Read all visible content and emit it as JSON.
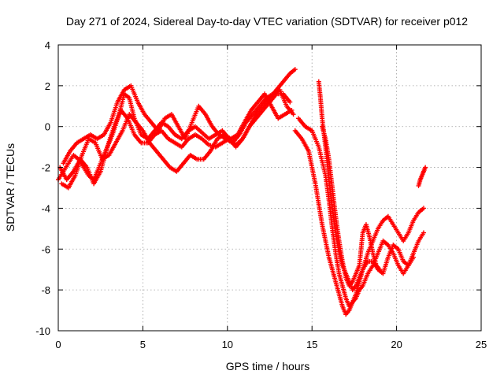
{
  "chart_data": {
    "type": "scatter",
    "title": "Day 271 of 2024, Sidereal Day-to-day VTEC variation (SDTVAR) for receiver p012",
    "xlabel": "GPS time / hours",
    "ylabel": "SDTVAR / TECUs",
    "xlim": [
      0,
      25
    ],
    "ylim": [
      -10,
      4
    ],
    "xticks": [
      "0",
      "5",
      "10",
      "15",
      "20",
      "25"
    ],
    "yticks": [
      "-10",
      "-8",
      "-6",
      "-4",
      "-2",
      "0",
      "2",
      "4"
    ],
    "grid": true,
    "marker": "plus",
    "colors": {
      "series": "#ff0000",
      "grid": "#a0a0a0",
      "axis": "#000000"
    },
    "series": [
      {
        "x": [
          0,
          0.3,
          0.6,
          0.9,
          1.2,
          1.5,
          1.8,
          2.1,
          2.4,
          2.8,
          3.2,
          3.6,
          3.9,
          4.2,
          4.5,
          4.9,
          5.3,
          5.7,
          6.1,
          6.5,
          6.9,
          7.3,
          7.7,
          8.1,
          8.5,
          8.9,
          9.3,
          9.7,
          10.1,
          10.5,
          10.9,
          11.3,
          11.7,
          12.1,
          12.5,
          12.9,
          13.3,
          13.7,
          14.0
        ],
        "y": [
          -2.6,
          -2.2,
          -1.8,
          -1.4,
          -1.6,
          -2.0,
          -2.4,
          -2.6,
          -2.0,
          -1.2,
          -0.4,
          0.6,
          1.6,
          1.4,
          0.4,
          -0.4,
          -0.6,
          -0.2,
          0.2,
          0.0,
          -0.4,
          -0.6,
          -0.2,
          0.0,
          -0.3,
          -0.6,
          -0.4,
          -0.2,
          -0.6,
          -0.9,
          -0.6,
          0.0,
          0.6,
          1.0,
          1.4,
          1.8,
          2.2,
          2.6,
          2.8
        ]
      },
      {
        "x": [
          0.1,
          0.5,
          0.9,
          1.3,
          1.7,
          2.1,
          2.5,
          2.9,
          3.3,
          3.7,
          4.1,
          4.5,
          4.9,
          5.3,
          5.7,
          6.1,
          6.5,
          6.9,
          7.3,
          7.7,
          8.1,
          8.5,
          8.9,
          9.3,
          9.7,
          10.1,
          10.5,
          10.9,
          11.3,
          11.7,
          12.1,
          12.5,
          12.9,
          13.3,
          13.7
        ],
        "y": [
          -2.0,
          -2.6,
          -2.2,
          -1.6,
          -2.0,
          -2.8,
          -2.2,
          -1.0,
          0.0,
          0.8,
          0.4,
          -0.4,
          -0.8,
          -0.8,
          -0.4,
          -0.2,
          -0.6,
          -0.8,
          -1.0,
          -0.6,
          -0.4,
          -0.6,
          -0.9,
          -1.0,
          -0.8,
          -0.6,
          -1.0,
          -0.6,
          0.0,
          0.4,
          0.8,
          1.2,
          1.6,
          1.6,
          1.2
        ]
      },
      {
        "x": [
          0.2,
          0.6,
          1.0,
          1.4,
          1.8,
          2.2,
          2.6,
          3.0,
          3.4,
          3.8,
          4.2,
          4.6,
          5.0,
          5.4,
          5.8,
          6.2,
          6.6,
          7.0,
          7.4,
          7.8,
          8.2,
          8.6,
          9.0,
          9.4,
          9.8,
          10.2,
          10.6,
          11.0,
          11.4,
          11.8,
          12.2,
          12.6,
          13.0,
          13.4,
          13.8
        ],
        "y": [
          -2.8,
          -3.0,
          -2.4,
          -1.4,
          -0.6,
          -0.8,
          -1.6,
          -1.4,
          -0.8,
          -0.2,
          0.6,
          0.2,
          -0.2,
          -0.8,
          -1.2,
          -1.6,
          -2.0,
          -2.2,
          -1.8,
          -1.4,
          -1.6,
          -1.6,
          -1.2,
          -0.6,
          -0.4,
          -0.6,
          -0.4,
          0.2,
          0.8,
          1.2,
          1.6,
          1.0,
          0.4,
          0.6,
          0.8
        ]
      },
      {
        "x": [
          0.3,
          0.7,
          1.1,
          1.5,
          1.9,
          2.3,
          2.7,
          3.1,
          3.5,
          3.9,
          4.3,
          4.7,
          5.1,
          5.5,
          5.9,
          6.3,
          6.7,
          7.1,
          7.5,
          7.9,
          8.3,
          8.7,
          9.1,
          9.5,
          9.9,
          10.3,
          10.7,
          11.1,
          11.5,
          11.9,
          12.3,
          12.7,
          13.1,
          13.5,
          13.9
        ],
        "y": [
          -1.8,
          -1.2,
          -0.8,
          -0.6,
          -0.4,
          -0.6,
          -0.4,
          0.2,
          1.2,
          1.8,
          2.0,
          1.2,
          0.6,
          0.2,
          -0.2,
          0.4,
          0.6,
          0.0,
          -0.6,
          0.2,
          1.0,
          0.6,
          0.0,
          -0.4,
          -0.6,
          -0.8,
          -0.4,
          0.2,
          0.6,
          1.0,
          1.4,
          1.6,
          1.8,
          1.0,
          0.6
        ]
      },
      {
        "x": [
          14.0,
          14.4,
          14.8,
          15.0,
          15.2,
          15.4,
          15.6,
          15.8,
          16.0,
          16.2,
          16.4,
          16.6,
          16.8,
          17.0,
          17.2,
          17.4,
          17.6,
          17.8,
          18.0,
          18.3,
          18.6,
          18.9,
          19.2,
          19.5,
          19.8,
          20.1,
          20.4,
          20.7,
          21.0,
          21.3,
          21.6
        ],
        "y": [
          -0.2,
          -0.6,
          -1.2,
          -2.0,
          -2.8,
          -3.8,
          -4.8,
          -5.6,
          -6.4,
          -7.0,
          -7.6,
          -8.2,
          -8.8,
          -9.2,
          -9.0,
          -8.6,
          -8.4,
          -8.0,
          -7.8,
          -7.2,
          -6.8,
          -6.2,
          -5.6,
          -5.8,
          -6.2,
          -6.8,
          -7.2,
          -6.8,
          -6.2,
          -5.6,
          -5.2
        ]
      },
      {
        "x": [
          14.2,
          14.6,
          15.0,
          15.4,
          15.8,
          16.0,
          16.2,
          16.4,
          16.6,
          16.8,
          17.0,
          17.2,
          17.4,
          17.6,
          17.8,
          18.0,
          18.3,
          18.6,
          18.9,
          19.2,
          19.5,
          19.8,
          20.1,
          20.4,
          20.7,
          21.0,
          21.3,
          21.6
        ],
        "y": [
          0.4,
          0.0,
          -0.2,
          -1.0,
          -2.4,
          -3.6,
          -5.0,
          -6.2,
          -7.2,
          -7.8,
          -8.4,
          -8.8,
          -8.6,
          -8.2,
          -7.6,
          -7.0,
          -6.2,
          -5.6,
          -5.0,
          -4.6,
          -4.4,
          -4.8,
          -5.2,
          -5.6,
          -5.2,
          -4.6,
          -4.2,
          -4.0
        ]
      },
      {
        "x": [
          15.4,
          15.5,
          15.6,
          15.8,
          16.0,
          16.2,
          16.4,
          16.6,
          16.8,
          17.0,
          17.2,
          17.4,
          17.6,
          17.8,
          18.0,
          18.3,
          18.6,
          18.9,
          19.2,
          19.5,
          19.8,
          20.1,
          20.4,
          20.7,
          21.0
        ],
        "y": [
          2.2,
          1.4,
          0.4,
          -1.0,
          -2.6,
          -4.0,
          -5.2,
          -6.2,
          -6.8,
          -7.2,
          -7.6,
          -8.0,
          -7.8,
          -7.4,
          -7.0,
          -6.6,
          -6.6,
          -7.0,
          -7.2,
          -6.4,
          -5.8,
          -6.0,
          -6.6,
          -6.8,
          -6.4
        ]
      },
      {
        "x": [
          15.6,
          15.8,
          16.0,
          16.2,
          16.4,
          16.6,
          16.8,
          17.0,
          17.2,
          17.4,
          17.6,
          17.8,
          18.0,
          18.2,
          18.4,
          18.6,
          18.8,
          19.0
        ],
        "y": [
          0.0,
          -0.6,
          -1.6,
          -3.0,
          -4.4,
          -5.6,
          -6.6,
          -7.4,
          -7.8,
          -7.6,
          -7.2,
          -6.8,
          -5.2,
          -4.8,
          -5.4,
          -6.2,
          -6.8,
          -7.0
        ]
      },
      {
        "x": [
          21.3,
          21.4,
          21.5,
          21.6,
          21.7
        ],
        "y": [
          -2.9,
          -2.6,
          -2.4,
          -2.2,
          -2.0
        ]
      }
    ]
  }
}
